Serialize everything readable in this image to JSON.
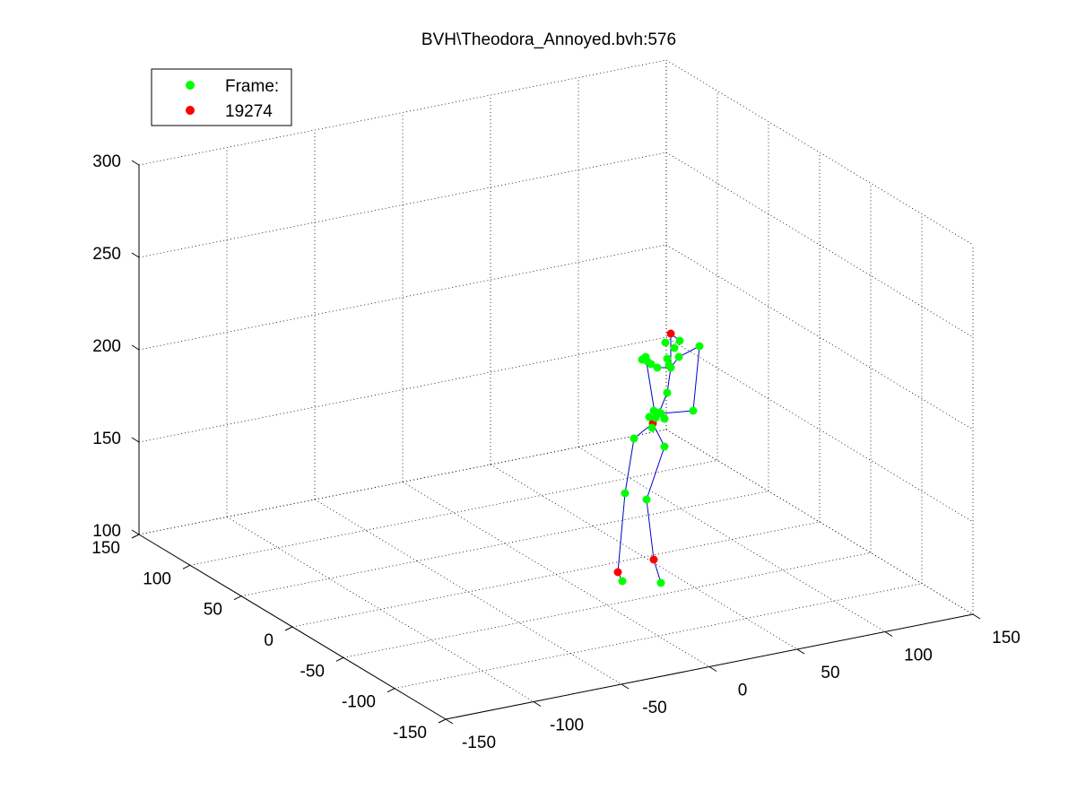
{
  "chart_data": {
    "type": "scatter",
    "title": "BVH\\Theodora_Annoyed.bvh:576",
    "xlabel": "",
    "ylabel": "",
    "zlabel": "",
    "xlim": [
      -150,
      150
    ],
    "ylim": [
      -150,
      150
    ],
    "zlim": [
      100,
      300
    ],
    "x_ticks": [
      -150,
      -100,
      -50,
      0,
      50,
      100,
      150
    ],
    "y_ticks": [
      -150,
      -100,
      -50,
      0,
      50,
      100,
      150
    ],
    "z_ticks": [
      100,
      150,
      200,
      250,
      300
    ],
    "grid": true,
    "view": "3d-perspective",
    "legend": {
      "placement": "top-left",
      "entries": [
        {
          "label": "Frame:",
          "color": "#00ff00"
        },
        {
          "label": "19274",
          "color": "#ff0000"
        }
      ]
    },
    "colors": {
      "joint": "#00ff00",
      "highlight": "#ff0000",
      "bone": "#0000cc",
      "grid": "#000000"
    }
  }
}
